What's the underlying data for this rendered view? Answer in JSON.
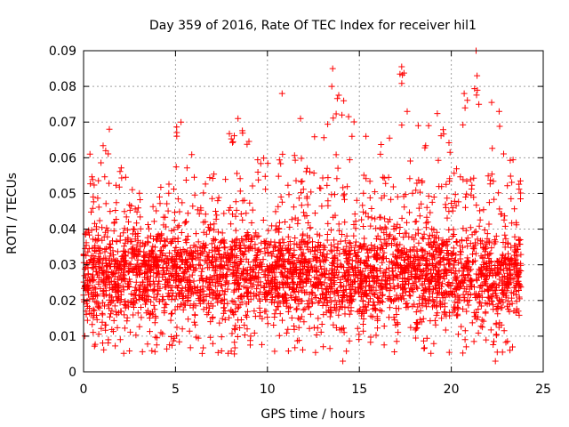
{
  "chart_data": {
    "type": "scatter",
    "title": "Day 359 of 2016, Rate Of TEC Index for receiver hil1",
    "xlabel": "GPS time / hours",
    "ylabel": "ROTI / TECUs",
    "xlim": [
      0,
      25
    ],
    "ylim": [
      0,
      0.09
    ],
    "xticks": [
      0,
      5,
      10,
      15,
      20,
      25
    ],
    "xtick_labels": [
      "0",
      "5",
      "10",
      "15",
      "20",
      "25"
    ],
    "yticks": [
      0,
      0.01,
      0.02,
      0.03,
      0.04,
      0.05,
      0.06,
      0.07,
      0.08,
      0.09
    ],
    "ytick_labels": [
      "0",
      "0.01",
      "0.02",
      "0.03",
      "0.04",
      "0.05",
      "0.06",
      "0.07",
      "0.08",
      "0.09"
    ],
    "grid": true,
    "marker": "+",
    "color": "#ff0000",
    "series": [
      {
        "name": "ROTI",
        "x_range": [
          0.0,
          23.8
        ],
        "typical_range": [
          0.005,
          0.045
        ],
        "envelope": [
          {
            "x": 0.0,
            "low": 0.006,
            "high": 0.052
          },
          {
            "x": 1.4,
            "low": 0.005,
            "high": 0.068
          },
          {
            "x": 2.5,
            "low": 0.006,
            "high": 0.052
          },
          {
            "x": 4.0,
            "low": 0.008,
            "high": 0.05
          },
          {
            "x": 5.2,
            "low": 0.006,
            "high": 0.071
          },
          {
            "x": 7.0,
            "low": 0.007,
            "high": 0.058
          },
          {
            "x": 8.3,
            "low": 0.005,
            "high": 0.072
          },
          {
            "x": 10.5,
            "low": 0.006,
            "high": 0.065
          },
          {
            "x": 12.0,
            "low": 0.006,
            "high": 0.062
          },
          {
            "x": 13.5,
            "low": 0.005,
            "high": 0.085
          },
          {
            "x": 14.0,
            "low": 0.003,
            "high": 0.076
          },
          {
            "x": 16.0,
            "low": 0.006,
            "high": 0.062
          },
          {
            "x": 17.3,
            "low": 0.007,
            "high": 0.086
          },
          {
            "x": 18.5,
            "low": 0.006,
            "high": 0.07
          },
          {
            "x": 20.5,
            "low": 0.007,
            "high": 0.078
          },
          {
            "x": 21.4,
            "low": 0.004,
            "high": 0.09
          },
          {
            "x": 22.5,
            "low": 0.003,
            "high": 0.073
          },
          {
            "x": 23.8,
            "low": 0.006,
            "high": 0.055
          }
        ],
        "outliers": [
          {
            "x": 0.35,
            "y": 0.061
          },
          {
            "x": 1.4,
            "y": 0.068
          },
          {
            "x": 5.3,
            "y": 0.07
          },
          {
            "x": 8.4,
            "y": 0.071
          },
          {
            "x": 10.8,
            "y": 0.078
          },
          {
            "x": 11.8,
            "y": 0.071
          },
          {
            "x": 13.55,
            "y": 0.085
          },
          {
            "x": 13.5,
            "y": 0.08
          },
          {
            "x": 14.15,
            "y": 0.076
          },
          {
            "x": 14.05,
            "y": 0.072
          },
          {
            "x": 14.6,
            "y": 0.066
          },
          {
            "x": 17.3,
            "y": 0.0855
          },
          {
            "x": 17.6,
            "y": 0.073
          },
          {
            "x": 18.2,
            "y": 0.069
          },
          {
            "x": 20.7,
            "y": 0.078
          },
          {
            "x": 20.75,
            "y": 0.074
          },
          {
            "x": 21.35,
            "y": 0.09
          },
          {
            "x": 21.4,
            "y": 0.083
          },
          {
            "x": 21.5,
            "y": 0.075
          },
          {
            "x": 22.6,
            "y": 0.073
          },
          {
            "x": 14.1,
            "y": 0.003
          },
          {
            "x": 22.4,
            "y": 0.003
          },
          {
            "x": 8.2,
            "y": 0.005
          }
        ]
      }
    ]
  }
}
